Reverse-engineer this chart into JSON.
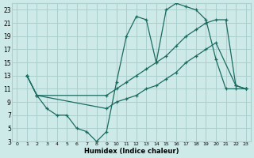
{
  "background_color": "#ceeae8",
  "grid_color": "#aacfcc",
  "line_color": "#1a6b60",
  "xlabel": "Humidex (Indice chaleur)",
  "xlim": [
    -0.5,
    23.5
  ],
  "ylim": [
    3,
    24
  ],
  "yticks": [
    3,
    5,
    7,
    9,
    11,
    13,
    15,
    17,
    19,
    21,
    23
  ],
  "xticks": [
    0,
    1,
    2,
    3,
    4,
    5,
    6,
    7,
    8,
    9,
    10,
    11,
    12,
    13,
    14,
    15,
    16,
    17,
    18,
    19,
    20,
    21,
    22,
    23
  ],
  "series1_x": [
    1,
    2,
    3,
    4,
    5,
    6,
    7,
    8,
    9,
    10,
    11,
    12,
    13,
    14,
    15,
    16,
    17,
    18,
    19,
    20,
    21,
    22,
    23
  ],
  "series1_y": [
    13,
    10,
    8,
    7,
    7,
    5,
    4.5,
    3,
    4.5,
    12,
    19,
    22,
    21.5,
    15,
    23,
    24,
    23.5,
    23,
    21.5,
    15.5,
    11,
    11,
    11
  ],
  "series2_x": [
    1,
    2,
    9,
    10,
    11,
    12,
    13,
    14,
    15,
    16,
    17,
    18,
    19,
    20,
    21,
    22,
    23
  ],
  "series2_y": [
    13,
    10,
    10,
    11,
    12,
    13,
    14,
    15,
    16,
    17.5,
    19,
    20,
    21,
    21.5,
    21.5,
    11.5,
    11
  ],
  "series3_x": [
    1,
    2,
    9,
    10,
    11,
    12,
    13,
    14,
    15,
    16,
    17,
    18,
    19,
    20,
    22,
    23
  ],
  "series3_y": [
    13,
    10,
    8,
    9,
    9.5,
    10,
    11,
    11.5,
    12.5,
    13.5,
    15,
    16,
    17,
    18,
    11.5,
    11
  ]
}
